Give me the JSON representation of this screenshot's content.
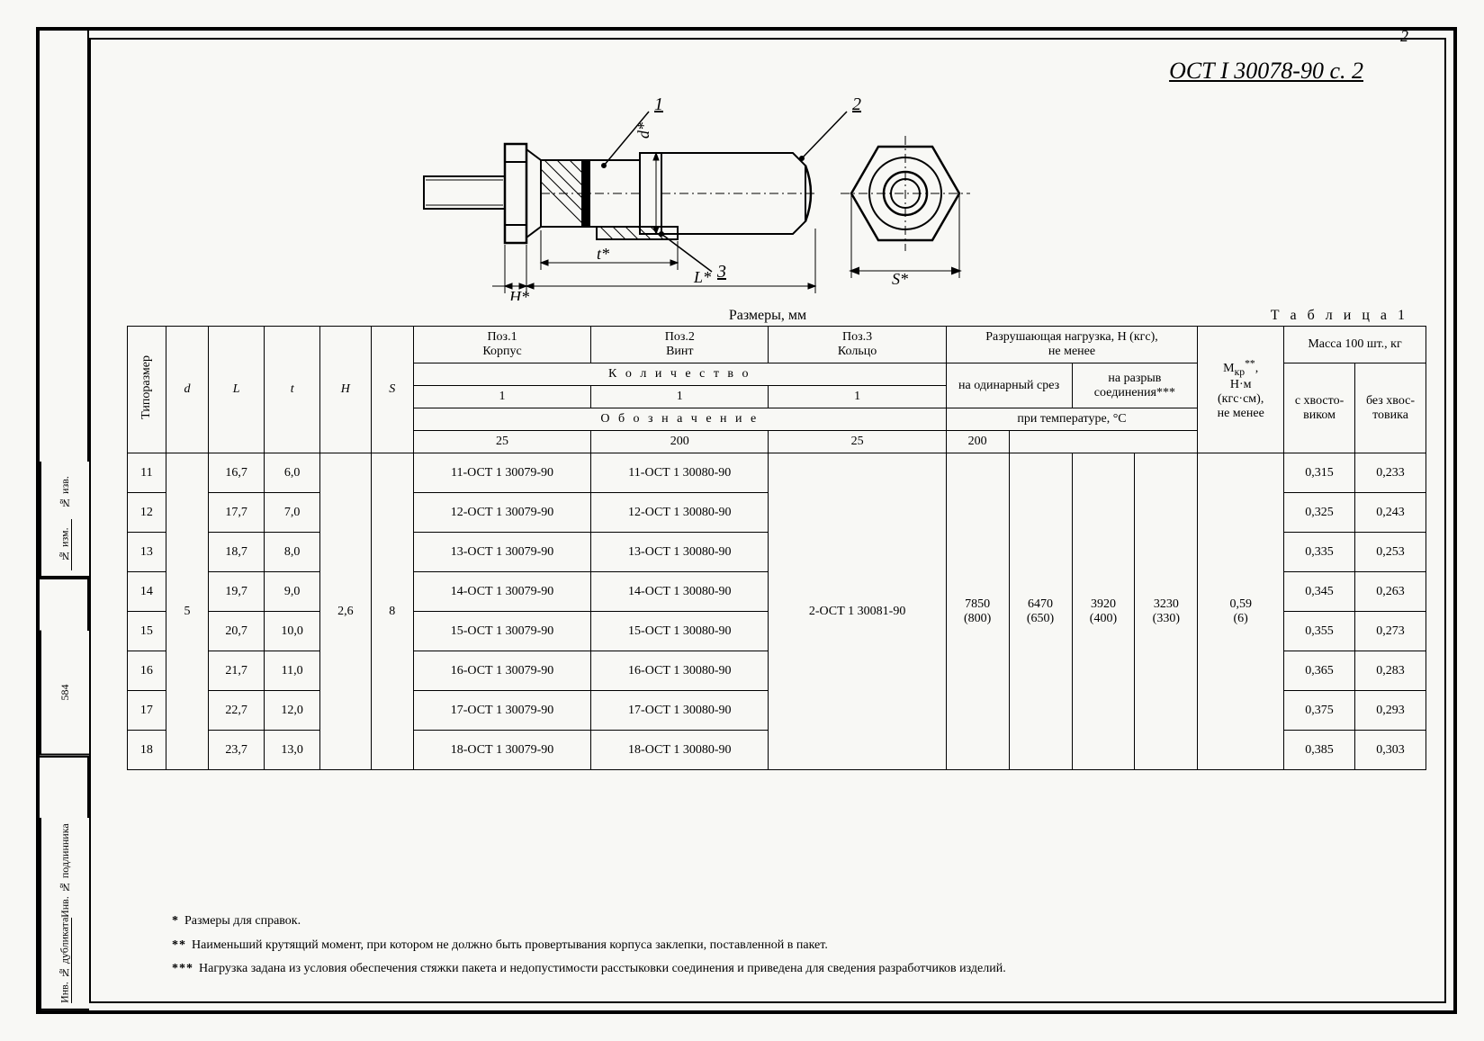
{
  "page_number": "2",
  "document_code": "ОСТ I 30078-90 с. 2",
  "drawing": {
    "callouts": [
      "1",
      "2",
      "3"
    ],
    "dims": {
      "H": "H*",
      "t": "t*",
      "L": "L*",
      "d": "d*",
      "S": "S*"
    }
  },
  "captions": {
    "dimensions": "Размеры, мм",
    "table_no": "Т а б л и ц а  1"
  },
  "left_strip": {
    "cell_izm_a": "№ изм.",
    "cell_izm_b": "№ изв.",
    "cell_num": "584",
    "cell_dub": "Инв. № дубликата",
    "cell_pod": "Инв. № подлинника"
  },
  "table": {
    "head": {
      "typesize": "Типоразмер",
      "d": "d",
      "L": "L",
      "t": "t",
      "H": "H",
      "S": "S",
      "pos1_top": "Поз.1",
      "pos1_bot": "Корпус",
      "pos2_top": "Поз.2",
      "pos2_bot": "Винт",
      "pos3_top": "Поз.3",
      "pos3_bot": "Кольцо",
      "qty": "К о л и ч е с т в о",
      "qty1": "1",
      "qty2": "1",
      "qty3": "1",
      "desig": "О б о з н а ч е н и е",
      "load_title": "Разрушающая нагрузка, Н (кгс),\nне менее",
      "shear": "на одинарный срез",
      "tension": "на разрыв соединения***",
      "temp": "при температуре, °C",
      "t25": "25",
      "t200": "200",
      "mkp_l1": "М",
      "mkp_sub": "кр",
      "mkp_ast": "**",
      "mkp_l2": "Н·м",
      "mkp_l3": "(кгс·см),",
      "mkp_l4": "не менее",
      "mass_title": "Масса 100 шт., кг",
      "with_shank": "с хвосто-виком",
      "without_shank": "без хвос-товика"
    },
    "merged": {
      "d": "5",
      "H": "2,6",
      "S": "8",
      "pos3": "2-ОСТ 1 30081-90",
      "load_25a": "7850",
      "load_25a_k": "(800)",
      "load_200a": "6470",
      "load_200a_k": "(650)",
      "load_25b": "3920",
      "load_25b_k": "(400)",
      "load_200b": "3230",
      "load_200b_k": "(330)",
      "mkp": "0,59",
      "mkp_k": "(6)"
    },
    "rows": [
      {
        "ts": "11",
        "L": "16,7",
        "t": "6,0",
        "p1": "11-ОСТ 1 30079-90",
        "p2": "11-ОСТ 1 30080-90",
        "m1": "0,315",
        "m2": "0,233"
      },
      {
        "ts": "12",
        "L": "17,7",
        "t": "7,0",
        "p1": "12-ОСТ 1 30079-90",
        "p2": "12-ОСТ 1 30080-90",
        "m1": "0,325",
        "m2": "0,243"
      },
      {
        "ts": "13",
        "L": "18,7",
        "t": "8,0",
        "p1": "13-ОСТ 1 30079-90",
        "p2": "13-ОСТ 1 30080-90",
        "m1": "0,335",
        "m2": "0,253"
      },
      {
        "ts": "14",
        "L": "19,7",
        "t": "9,0",
        "p1": "14-ОСТ 1 30079-90",
        "p2": "14-ОСТ 1 30080-90",
        "m1": "0,345",
        "m2": "0,263"
      },
      {
        "ts": "15",
        "L": "20,7",
        "t": "10,0",
        "p1": "15-ОСТ 1 30079-90",
        "p2": "15-ОСТ 1 30080-90",
        "m1": "0,355",
        "m2": "0,273"
      },
      {
        "ts": "16",
        "L": "21,7",
        "t": "11,0",
        "p1": "16-ОСТ 1 30079-90",
        "p2": "16-ОСТ 1 30080-90",
        "m1": "0,365",
        "m2": "0,283"
      },
      {
        "ts": "17",
        "L": "22,7",
        "t": "12,0",
        "p1": "17-ОСТ 1 30079-90",
        "p2": "17-ОСТ 1 30080-90",
        "m1": "0,375",
        "m2": "0,293"
      },
      {
        "ts": "18",
        "L": "23,7",
        "t": "13,0",
        "p1": "18-ОСТ 1 30079-90",
        "p2": "18-ОСТ 1 30080-90",
        "m1": "0,385",
        "m2": "0,303"
      }
    ]
  },
  "notes": {
    "n1_ast": "*",
    "n1": "Размеры для справок.",
    "n2_ast": "**",
    "n2": "Наименьший крутящий момент, при котором не должно быть провертывания корпуса заклепки, поставленной в пакет.",
    "n3_ast": "***",
    "n3": "Нагрузка задана из условия обеспечения стяжки пакета и недопустимости расстыковки соединения и приведена для сведения разработчиков изделий."
  }
}
